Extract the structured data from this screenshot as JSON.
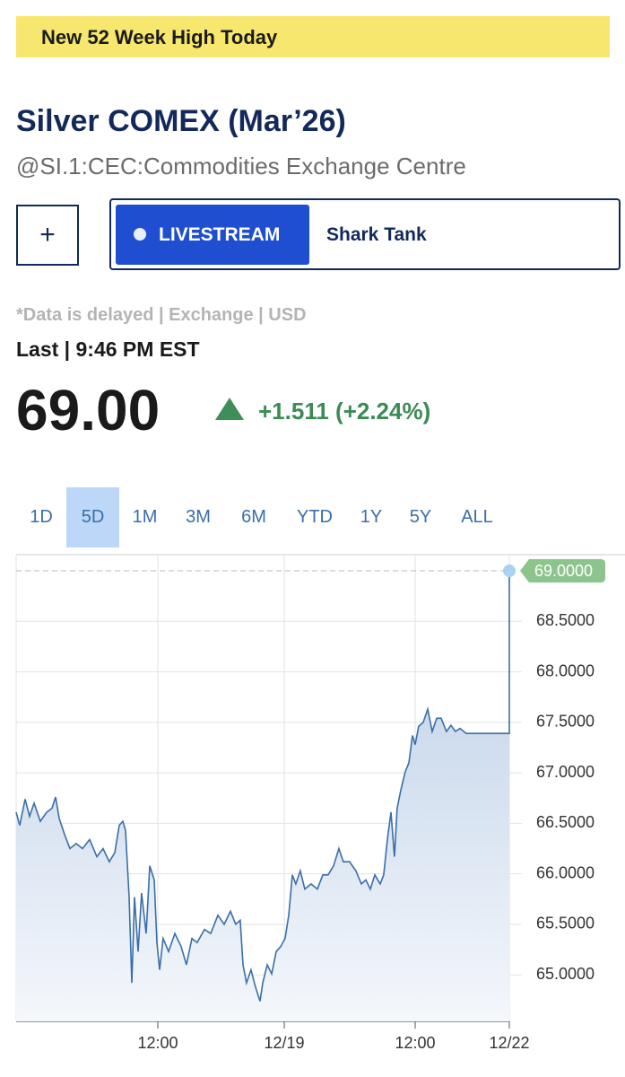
{
  "banner": "New 52 Week High Today",
  "title": "Silver COMEX (Mar’26)",
  "subtitle": "@SI.1:CEC:Commodities Exchange Centre",
  "add_button": "+",
  "livestream": "LIVESTREAM",
  "show": "Shark Tank",
  "disclaimer": "*Data is delayed | Exchange | USD",
  "last_label": "Last | 9:46 PM EST",
  "price": "69.00",
  "change": "+1.511 (+2.24%)",
  "ranges": [
    "1D",
    "5D",
    "1M",
    "3M",
    "6M",
    "YTD",
    "1Y",
    "5Y",
    "ALL"
  ],
  "selected_range": "5D",
  "chart_data": {
    "type": "line",
    "color": "#3a6ea8",
    "x": [
      0,
      0.34,
      0.84,
      1.26,
      1.68,
      2.27,
      2.86,
      3.37,
      3.7,
      4.04,
      4.55,
      5.05,
      5.64,
      6.23,
      6.9,
      7.58,
      8.16,
      8.75,
      9.26,
      9.68,
      10.02,
      10.27,
      10.61,
      10.86,
      11.11,
      11.45,
      11.78,
      12.21,
      12.54,
      12.96,
      13.22,
      13.47,
      13.8,
      14.31,
      14.9,
      15.49,
      15.99,
      16.5,
      17.0,
      17.68,
      18.27,
      18.94,
      19.53,
      20.12,
      20.62,
      21.04,
      21.3,
      21.63,
      22.05,
      22.47,
      22.9,
      23.15,
      23.57,
      23.99,
      24.41,
      24.83,
      25.25,
      25.59,
      25.93,
      26.26,
      26.68,
      27.1,
      27.69,
      28.28,
      28.79,
      29.29,
      29.8,
      30.3,
      30.72,
      31.31,
      31.9,
      32.41,
      32.83,
      33.25,
      33.67,
      34.18,
      34.51,
      34.85,
      35.19,
      35.52,
      35.77,
      36.11,
      36.53,
      36.87,
      37.21,
      37.46,
      37.79,
      38.22,
      38.64,
      39.06,
      39.48,
      39.9,
      40.4,
      40.82,
      41.25,
      41.67,
      42.26,
      46.3,
      46.3
    ],
    "values": [
      66.61,
      66.48,
      66.74,
      66.57,
      66.7,
      66.52,
      66.61,
      66.65,
      66.76,
      66.55,
      66.39,
      66.25,
      66.3,
      66.25,
      66.34,
      66.17,
      66.25,
      66.12,
      66.21,
      66.48,
      66.52,
      66.43,
      65.77,
      64.92,
      65.77,
      65.23,
      65.81,
      65.41,
      66.08,
      65.94,
      65.32,
      65.05,
      65.36,
      65.23,
      65.41,
      65.28,
      65.1,
      65.36,
      65.32,
      65.45,
      65.41,
      65.59,
      65.5,
      65.63,
      65.5,
      65.54,
      65.1,
      64.92,
      65.05,
      64.88,
      64.74,
      64.92,
      65.1,
      65.01,
      65.23,
      65.28,
      65.36,
      65.59,
      65.99,
      65.9,
      66.03,
      65.85,
      65.9,
      65.85,
      65.99,
      65.99,
      66.08,
      66.25,
      66.12,
      66.12,
      66.03,
      65.9,
      65.94,
      65.85,
      65.99,
      65.9,
      65.99,
      66.34,
      66.61,
      66.17,
      66.65,
      66.83,
      67.01,
      67.1,
      67.37,
      67.28,
      67.46,
      67.5,
      67.63,
      67.41,
      67.54,
      67.54,
      67.41,
      67.47,
      67.41,
      67.44,
      67.39,
      67.39,
      69.0
    ],
    "xlim": [
      0,
      46.3
    ],
    "xticks": [
      {
        "value": 13.3,
        "label": "12:00"
      },
      {
        "value": 25.17,
        "label": "12/19"
      },
      {
        "value": 37.46,
        "label": "12:00"
      },
      {
        "value": 46.3,
        "label": "12/22"
      }
    ],
    "ylim": [
      64.54,
      69.16
    ],
    "yticks": [
      {
        "value": 65,
        "label": "65.0000"
      },
      {
        "value": 65.5,
        "label": "65.5000"
      },
      {
        "value": 66,
        "label": "66.0000"
      },
      {
        "value": 66.5,
        "label": "66.5000"
      },
      {
        "value": 67,
        "label": "67.0000"
      },
      {
        "value": 67.5,
        "label": "67.5000"
      },
      {
        "value": 68,
        "label": "68.0000"
      },
      {
        "value": 68.5,
        "label": "68.5000"
      }
    ],
    "grid": true,
    "current": {
      "value": 69.0,
      "label": "69.0000"
    }
  }
}
